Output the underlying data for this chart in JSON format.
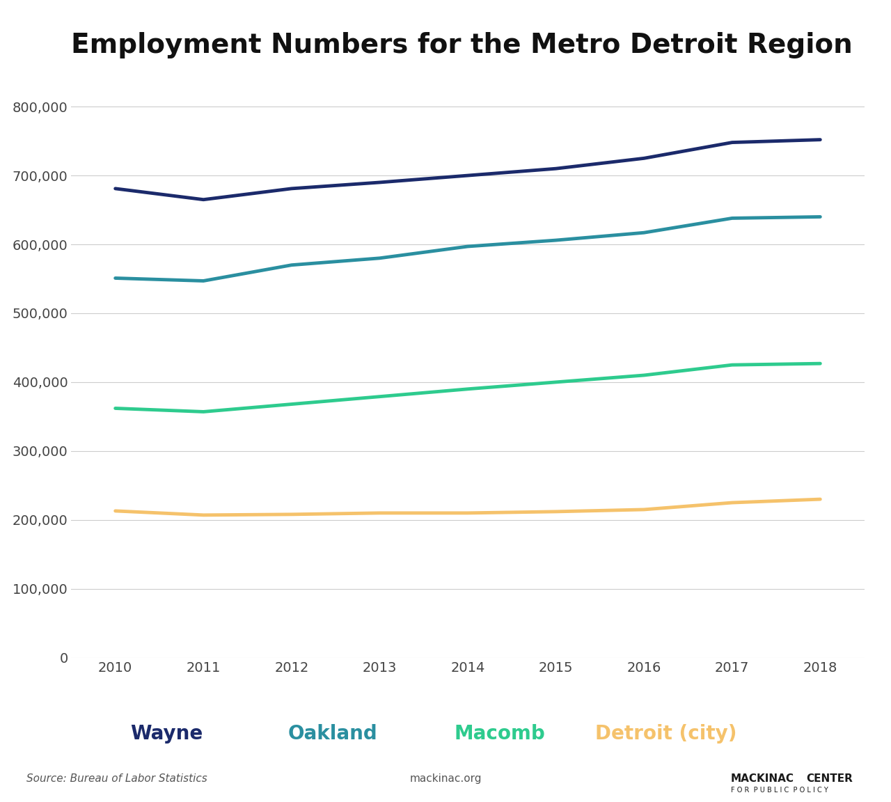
{
  "title": "Employment Numbers for the Metro Detroit Region",
  "years": [
    2010,
    2011,
    2012,
    2013,
    2014,
    2015,
    2016,
    2017,
    2018
  ],
  "wayne": [
    681000,
    665000,
    681000,
    690000,
    700000,
    710000,
    725000,
    748000,
    752000
  ],
  "oakland": [
    551000,
    547000,
    570000,
    580000,
    597000,
    606000,
    617000,
    638000,
    640000
  ],
  "macomb": [
    362000,
    357000,
    368000,
    379000,
    390000,
    400000,
    410000,
    425000,
    427000
  ],
  "detroit": [
    213000,
    207000,
    208000,
    210000,
    210000,
    212000,
    215000,
    225000,
    230000
  ],
  "wayne_color": "#1b2a6b",
  "oakland_color": "#2a8fa0",
  "macomb_color": "#2ecb8e",
  "detroit_color": "#f5c26b",
  "background_color": "#ffffff",
  "ylim": [
    0,
    850000
  ],
  "yticks": [
    0,
    100000,
    200000,
    300000,
    400000,
    500000,
    600000,
    700000,
    800000
  ],
  "source_text": "Source: Bureau of Labor Statistics",
  "website_text": "mackinac.org",
  "line_width": 3.5,
  "title_fontsize": 28,
  "tick_fontsize": 14,
  "legend_fontsize": 20
}
